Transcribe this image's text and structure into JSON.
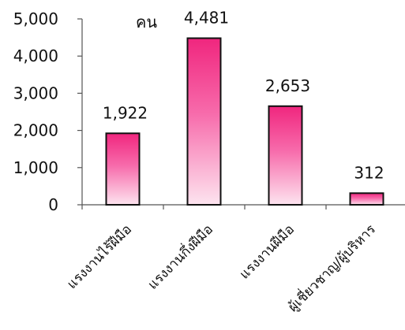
{
  "chart_data": {
    "type": "bar",
    "categories": [
      "แรงงานไร้ฝีมือ",
      "แรงงานกึ่งฝีมือ",
      "แรงงานฝีมือ",
      "ผู้เชี่ยวชาญ/ผู้บริหาร"
    ],
    "values": [
      1922,
      4481,
      2653,
      312
    ],
    "data_labels": [
      "1,922",
      "4,481",
      "2,653",
      "312"
    ],
    "unit_label": "คน",
    "ylim": [
      0,
      5000
    ],
    "yticks": [
      0,
      1000,
      2000,
      3000,
      4000,
      5000
    ],
    "ytick_labels": [
      "0",
      "1,000",
      "2,000",
      "3,000",
      "4,000",
      "5,000"
    ],
    "grid": false,
    "legend": "none",
    "colors": {
      "bar_top": "#f0267e",
      "bar_mid": "#f76bab",
      "bar_bottom": "#fde4ef",
      "bar_border": "#111111",
      "axis": "#555555"
    }
  }
}
